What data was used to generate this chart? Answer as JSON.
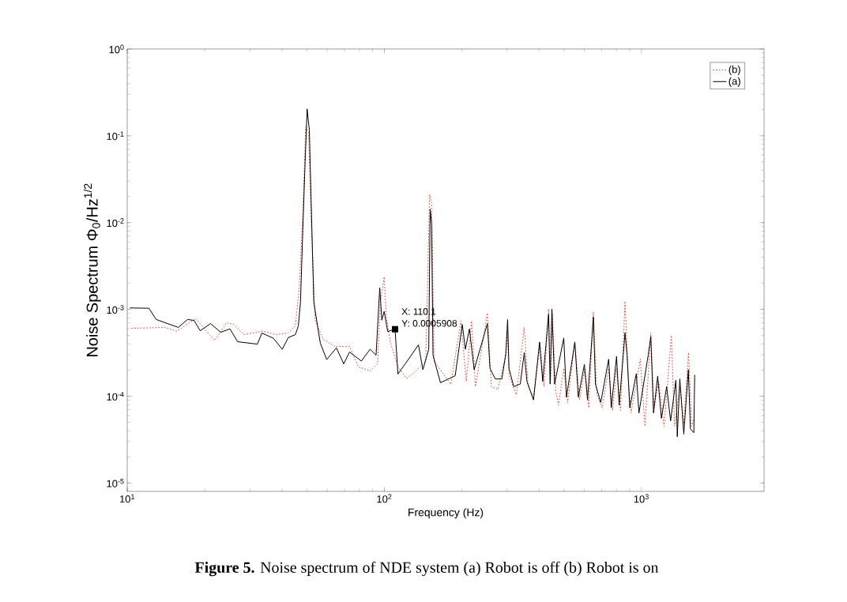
{
  "chart_data": {
    "type": "line",
    "xlabel": "Frequency (Hz)",
    "ylabel": "Noise Spectrum Φ$_{0}$/Hz$^{1/2}$",
    "log": "xy",
    "xlim": [
      10,
      3000
    ],
    "ylim": [
      8e-06,
      1
    ],
    "xticks": [
      {
        "value": 10,
        "label": "10$^{1}$"
      },
      {
        "value": 100,
        "label": "10$^{2}$"
      },
      {
        "value": 1000,
        "label": "10$^{3}$"
      }
    ],
    "yticks": [
      {
        "value": 1e-05,
        "label": "10$^{-5}$"
      },
      {
        "value": 0.0001,
        "label": "10$^{-4}$"
      },
      {
        "value": 0.001,
        "label": "10$^{-3}$"
      },
      {
        "value": 0.01,
        "label": "10$^{-2}$"
      },
      {
        "value": 0.1,
        "label": "10$^{-1}$"
      },
      {
        "value": 1,
        "label": "10$^{0}$"
      }
    ],
    "grid": false,
    "legend": "top right",
    "marker": "none",
    "series": [
      {
        "name": "(b)",
        "color": "#e63c1e",
        "line_style": "dotted",
        "x": [
          10.38,
          14.0,
          15.58,
          18.47,
          21.89,
          24.35,
          25.95,
          28.45,
          33.7,
          38.0,
          42.3,
          45.1,
          46.7,
          48.2,
          49.45,
          50.8,
          52.1,
          53.8,
          57.8,
          64.3,
          73.3,
          79.3,
          88.1,
          94.1,
          96.6,
          99.9,
          101.9,
          105.8,
          113.0,
          122.3,
          130.5,
          145.0,
          150.1,
          152.8,
          156.2,
          181.4,
          198.7,
          208.4,
          218.5,
          226.3,
          251.8,
          260.8,
          276.6,
          296.9,
          300.5,
          306,
          326.3,
          350.3,
          362.8,
          380.5,
          403.5,
          418.0,
          435.5,
          443.6,
          450.0,
          464.9,
          476.2,
          499.0,
          517.0,
          551.0,
          575.1,
          603.0,
          624.7,
          650.6,
          670.9,
          703.4,
          746.0,
          772.7,
          800.6,
          829.5,
          863.7,
          890.4,
          911.5,
          990.2,
          1033,
          1088,
          1119,
          1168,
          1225,
          1308,
          1346,
          1411,
          1462,
          1526,
          1569,
          1606
        ],
        "values": [
          0.000605,
          0.00062,
          0.000561,
          0.000783,
          0.000438,
          0.0007,
          0.000672,
          0.000512,
          0.000561,
          0.000512,
          0.000534,
          0.000644,
          0.00176,
          0.0123,
          0.126,
          0.108,
          0.0083,
          0.000752,
          0.000455,
          0.000374,
          0.000374,
          0.000218,
          0.000195,
          0.000236,
          0.00121,
          0.00237,
          0.000811,
          0.000407,
          0.000218,
          0.00016,
          0.000187,
          0.000254,
          0.0211,
          0.0167,
          0.000254,
          0.000137,
          0.000735,
          0.000148,
          0.000735,
          0.000129,
          0.000906,
          0.000129,
          0.00012,
          0.000297,
          0.000577,
          0.00017,
          0.000104,
          0.000618,
          0.000129,
          9.73e-05,
          0.000392,
          0.000129,
          0.00101,
          0.000158,
          0.000906,
          0.000112,
          7.89e-05,
          0.000209,
          8.46e-05,
          0.000421,
          9.06e-05,
          0.000209,
          7.35e-05,
          0.00094,
          0.000104,
          7.35e-05,
          0.000209,
          6.86e-05,
          0.000209,
          6.86e-05,
          0.00124,
          0.000148,
          6.4e-05,
          0.000267,
          4.51e-05,
          0.000537,
          7.35e-05,
          0.000148,
          4.51e-05,
          0.000501,
          4.51e-05,
          0.000129,
          4.84e-05,
          0.000318,
          4.51e-05,
          5.56e-05
        ]
      },
      {
        "name": "(a)",
        "color": "#000000",
        "line_style": "solid",
        "x": [
          10.24,
          12.15,
          12.96,
          15.8,
          17.18,
          18.2,
          19.23,
          21.1,
          23.1,
          25.1,
          26.9,
          32.1,
          33.4,
          37.0,
          40.1,
          42.3,
          45.1,
          46.3,
          47.2,
          48.2,
          49.2,
          50.1,
          51.1,
          52.1,
          53.2,
          55.0,
          56.4,
          59.7,
          65.1,
          69.5,
          73.3,
          81.4,
          88.1,
          92.9,
          96.0,
          97.8,
          99.9,
          103.1,
          110.1,
          113,
          120.7,
          135.8,
          141.3,
          148.9,
          150.8,
          152.8,
          154.7,
          165.4,
          188.7,
          201.1,
          206.7,
          214.3,
          223.6,
          251.8,
          257.7,
          270.2,
          286.6,
          296.9,
          301.8,
          305.5,
          318.8,
          338.0,
          350.3,
          358.8,
          380.5,
          401.8,
          413.3,
          435.5,
          441.6,
          448.7,
          459.7,
          499.0,
          511.1,
          551.0,
          568.5,
          600.1,
          617.4,
          650.6,
          662.7,
          694.9,
          746.0,
          763.6,
          800.6,
          819.5,
          863.7,
          879.8,
          901.3,
          955.7,
          978.3,
          1063,
          1088,
          1115,
          1157,
          1196,
          1254,
          1299,
          1362,
          1379,
          1411,
          1462,
          1523,
          1551,
          1600,
          1612
        ],
        "values": [
          0.00104,
          0.00103,
          0.000765,
          0.00062,
          0.000765,
          0.000746,
          0.000568,
          0.000686,
          0.000545,
          0.000596,
          0.000424,
          0.000398,
          0.000534,
          0.000466,
          0.000347,
          0.000473,
          0.000512,
          0.000644,
          0.00121,
          0.0083,
          0.0495,
          0.204,
          0.116,
          0.0123,
          0.00121,
          0.000644,
          0.000407,
          0.000264,
          0.000361,
          0.000236,
          0.000323,
          0.000254,
          0.000347,
          0.000297,
          0.00177,
          0.000752,
          0.00095,
          0.000556,
          0.0005908,
          0.00018,
          0.000236,
          0.00039,
          0.000202,
          0.000347,
          0.0143,
          0.0097,
          0.000297,
          0.000143,
          0.000172,
          0.00067,
          0.000347,
          0.000596,
          0.000202,
          0.000686,
          0.000209,
          0.000158,
          0.000158,
          0.000308,
          0.000762,
          0.000209,
          0.000129,
          0.000138,
          0.000318,
          0.000148,
          9.06e-05,
          0.000421,
          0.000148,
          0.000877,
          0.000138,
          0.00101,
          0.000138,
          0.000468,
          9.73e-05,
          0.000421,
          9.73e-05,
          0.000232,
          9.06e-05,
          0.000817,
          0.000138,
          8.46e-05,
          0.000267,
          7.35e-05,
          0.000287,
          7.89e-05,
          0.000537,
          0.000297,
          7.35e-05,
          0.000182,
          6.4e-05,
          0.000297,
          0.000484,
          6.4e-05,
          0.00017,
          5.56e-05,
          0.000129,
          5.19e-05,
          0.000153,
          3.42e-05,
          0.000158,
          3.66e-05,
          0.000202,
          4.21e-05,
          3.8e-05,
          0.000176
        ]
      }
    ],
    "annotations": [
      {
        "text": "X: 110.1",
        "x": 110.1,
        "y": 0.0005908
      },
      {
        "text": "Y: 0.0005908",
        "x": 110.1,
        "y": 0.0005908
      },
      "**Figure 5.** Noise spectrum of NDE system (a) Robot is off (b) Robot is on"
    ]
  }
}
